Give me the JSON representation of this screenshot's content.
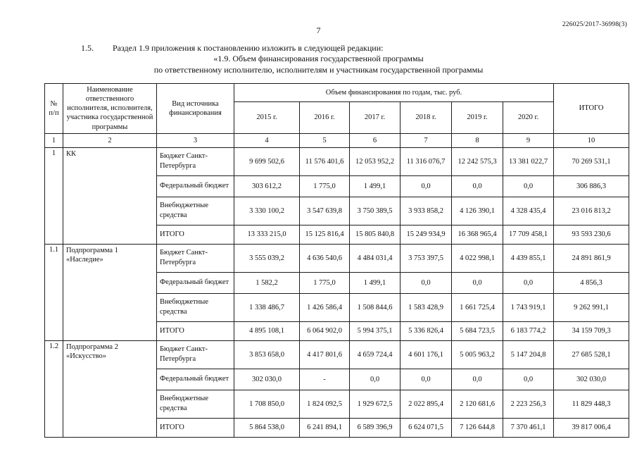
{
  "page": {
    "doc_number": "226025/2017-36998(3)",
    "page_number": "7",
    "para_number": "1.5.",
    "para_text": "Раздел 1.9 приложения к постановлению изложить в следующей редакции:",
    "subtitle_line1": "«1.9. Объем финансирования государственной программы",
    "subtitle_line2": "по ответственному исполнителю, исполнителям и участникам государственной программы"
  },
  "table": {
    "headers": {
      "num": "№ п/п",
      "name": "Наименование ответственного исполнителя, исполнителя, участника государственной программы",
      "source": "Вид источника финансирования",
      "volume_group": "Объем финансирования по годам, тыс. руб.",
      "years": [
        "2015 г.",
        "2016 г.",
        "2017 г.",
        "2018 г.",
        "2019 г.",
        "2020 г."
      ],
      "total": "ИТОГО",
      "col_numbers": [
        "1",
        "2",
        "3",
        "4",
        "5",
        "6",
        "7",
        "8",
        "9",
        "10"
      ]
    },
    "groups": [
      {
        "num": "1",
        "name": "КК",
        "rows": [
          {
            "source": "Бюджет Санкт-Петербурга",
            "values": [
              "9 699 502,6",
              "11 576 401,6",
              "12 053 952,2",
              "11 316 076,7",
              "12 242 575,3",
              "13 381 022,7",
              "70 269 531,1"
            ]
          },
          {
            "source": "Федеральный бюджет",
            "values": [
              "303 612,2",
              "1 775,0",
              "1 499,1",
              "0,0",
              "0,0",
              "0,0",
              "306 886,3"
            ]
          },
          {
            "source": "Внебюджетные средства",
            "values": [
              "3 330 100,2",
              "3 547 639,8",
              "3 750 389,5",
              "3 933 858,2",
              "4 126 390,1",
              "4 328 435,4",
              "23 016 813,2"
            ]
          },
          {
            "source": "ИТОГО",
            "values": [
              "13 333 215,0",
              "15 125 816,4",
              "15 805 840,8",
              "15 249 934,9",
              "16 368 965,4",
              "17 709 458,1",
              "93 593 230,6"
            ]
          }
        ]
      },
      {
        "num": "1.1",
        "name": "Подпрограмма 1 «Наследие»",
        "rows": [
          {
            "source": "Бюджет Санкт-Петербурга",
            "values": [
              "3 555 039,2",
              "4 636 540,6",
              "4 484 031,4",
              "3 753 397,5",
              "4 022 998,1",
              "4 439 855,1",
              "24 891 861,9"
            ]
          },
          {
            "source": "Федеральный бюджет",
            "values": [
              "1 582,2",
              "1 775,0",
              "1 499,1",
              "0,0",
              "0,0",
              "0,0",
              "4 856,3"
            ]
          },
          {
            "source": "Внебюджетные средства",
            "values": [
              "1 338 486,7",
              "1 426 586,4",
              "1 508 844,6",
              "1 583 428,9",
              "1 661 725,4",
              "1 743 919,1",
              "9 262 991,1"
            ]
          },
          {
            "source": "ИТОГО",
            "values": [
              "4 895 108,1",
              "6 064 902,0",
              "5 994 375,1",
              "5 336 826,4",
              "5 684 723,5",
              "6 183 774,2",
              "34 159 709,3"
            ]
          }
        ]
      },
      {
        "num": "1.2",
        "name": "Подпрограмма 2 «Искусство»",
        "rows": [
          {
            "source": "Бюджет Санкт-Петербурга",
            "values": [
              "3 853 658,0",
              "4 417 801,6",
              "4 659 724,4",
              "4 601 176,1",
              "5 005 963,2",
              "5 147 204,8",
              "27 685 528,1"
            ]
          },
          {
            "source": "Федеральный бюджет",
            "values": [
              "302 030,0",
              "-",
              "0,0",
              "0,0",
              "0,0",
              "0,0",
              "302 030,0"
            ]
          },
          {
            "source": "Внебюджетные средства",
            "values": [
              "1 708 850,0",
              "1 824 092,5",
              "1 929 672,5",
              "2 022 895,4",
              "2 120 681,6",
              "2 223 256,3",
              "11 829 448,3"
            ]
          },
          {
            "source": "ИТОГО",
            "values": [
              "5 864 538,0",
              "6 241 894,1",
              "6 589 396,9",
              "6 624 071,5",
              "7 126 644,8",
              "7 370 461,1",
              "39 817 006,4"
            ]
          }
        ]
      }
    ]
  }
}
